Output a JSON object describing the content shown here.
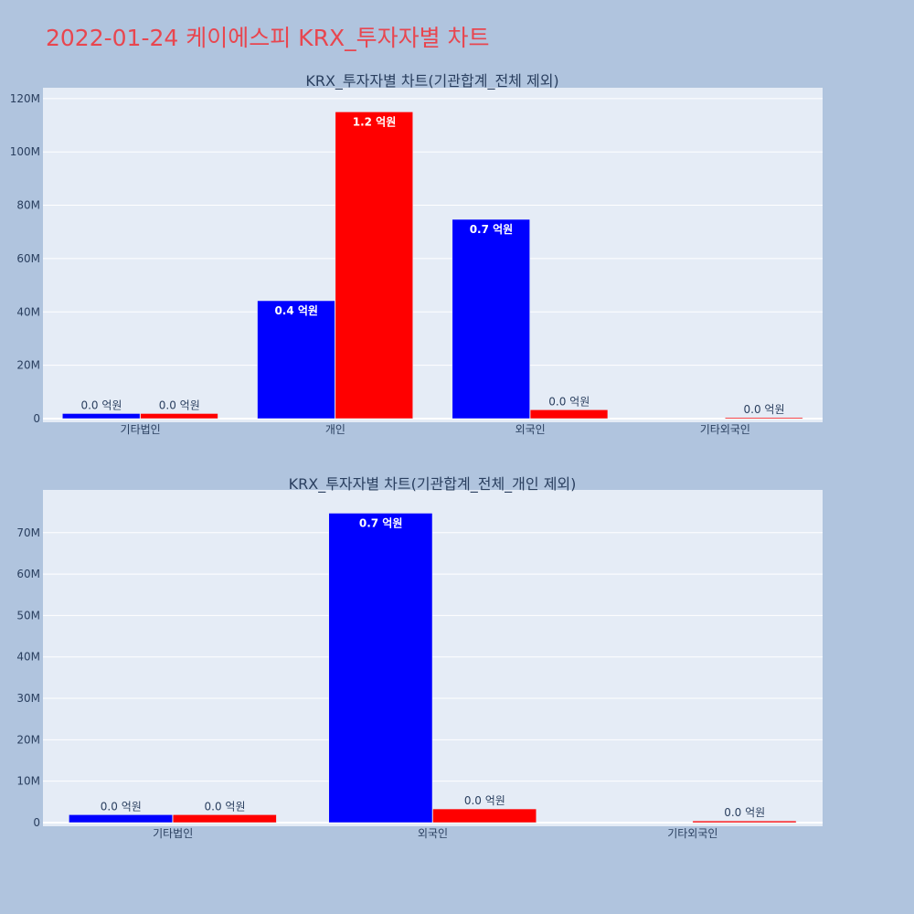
{
  "page": {
    "title": "2022-01-24 케이에스피 KRX_투자자별 차트",
    "background": "#b0c4de",
    "title_color": "#e8464f"
  },
  "chart_data": [
    {
      "type": "bar",
      "title": "KRX_투자자별 차트(기관합계_전체 제외)",
      "categories": [
        "기타법인",
        "개인",
        "외국인",
        "기타외국인"
      ],
      "series": [
        {
          "color": "#0000ff",
          "values": [
            1900000,
            44200000,
            74700000,
            0
          ],
          "labels": [
            "0.0 억원",
            "0.4 억원",
            "0.7 억원",
            ""
          ]
        },
        {
          "color": "#ff0000",
          "values": [
            1900000,
            115000000,
            3300000,
            400000
          ],
          "labels": [
            "0.0 억원",
            "1.2 억원",
            "0.0 억원",
            "0.0 억원"
          ]
        }
      ],
      "ylim": [
        0,
        122000000
      ],
      "yticks": [
        0,
        20000000,
        40000000,
        60000000,
        80000000,
        100000000,
        120000000
      ],
      "ytick_labels": [
        "0",
        "20M",
        "40M",
        "60M",
        "80M",
        "100M",
        "120M"
      ],
      "grid": true,
      "plot_bg": "#e5ecf6"
    },
    {
      "type": "bar",
      "title": "KRX_투자자별 차트(기관합계_전체_개인 제외)",
      "categories": [
        "기타법인",
        "외국인",
        "기타외국인"
      ],
      "series": [
        {
          "color": "#0000ff",
          "values": [
            1900000,
            74700000,
            0
          ],
          "labels": [
            "0.0 억원",
            "0.7 억원",
            ""
          ]
        },
        {
          "color": "#ff0000",
          "values": [
            1900000,
            3300000,
            400000
          ],
          "labels": [
            "0.0 억원",
            "0.0 억원",
            "0.0 억원"
          ]
        }
      ],
      "ylim": [
        0,
        79000000
      ],
      "yticks": [
        0,
        10000000,
        20000000,
        30000000,
        40000000,
        50000000,
        60000000,
        70000000
      ],
      "ytick_labels": [
        "0",
        "10M",
        "20M",
        "30M",
        "40M",
        "50M",
        "60M",
        "70M"
      ],
      "grid": true,
      "plot_bg": "#e5ecf6"
    }
  ]
}
